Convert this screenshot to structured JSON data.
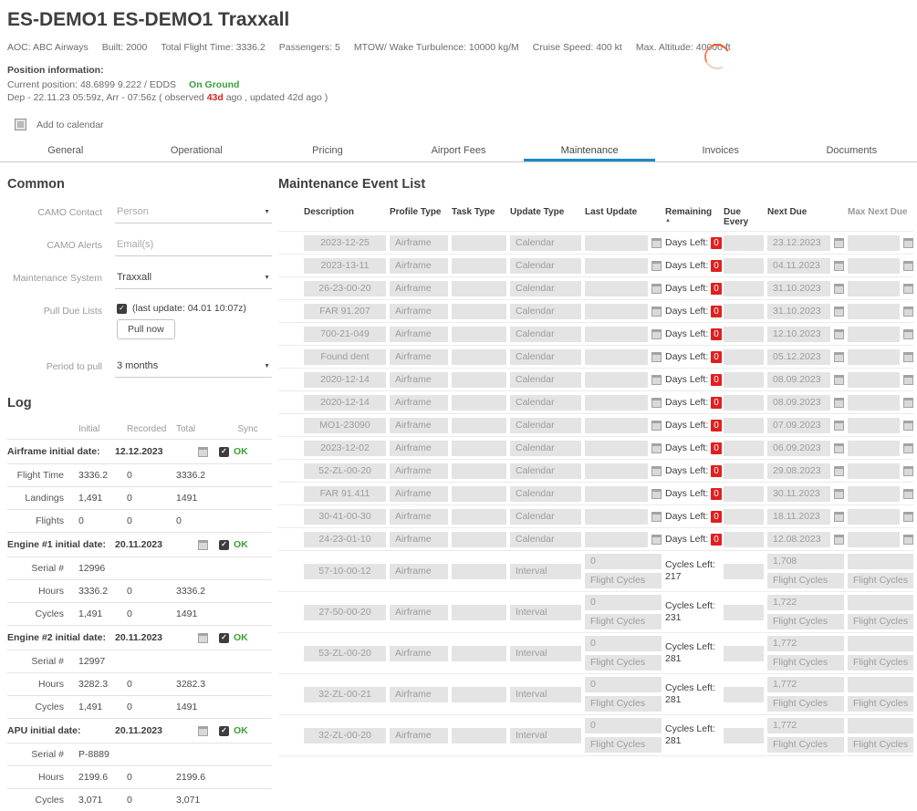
{
  "header": {
    "title": "ES-DEMO1 ES-DEMO1 Traxxall",
    "info_items": [
      "AOC: ABC Airways",
      "Built: 2000",
      "Total Flight Time: 3336.2",
      "Passengers: 5",
      "MTOW/ Wake Turbulence: 10000 kg/M",
      "Cruise Speed: 400 kt",
      "Max. Altitude: 40000 ft"
    ],
    "position": {
      "label": "Position information:",
      "current": "Current position: 48.6899 9.222 / EDDS",
      "status": "On Ground",
      "dep_prefix": "Dep - 22.11.23 05:59z, Arr - 07:56z ( observed ",
      "observed": "43d",
      "dep_suffix": " ago , updated 42d ago )"
    },
    "add_to_calendar": "Add to calendar"
  },
  "tabs": [
    {
      "label": "General",
      "active": false
    },
    {
      "label": "Operational",
      "active": false
    },
    {
      "label": "Pricing",
      "active": false
    },
    {
      "label": "Airport Fees",
      "active": false
    },
    {
      "label": "Maintenance",
      "active": true
    },
    {
      "label": "Invoices",
      "active": false
    },
    {
      "label": "Documents",
      "active": false
    }
  ],
  "common": {
    "title": "Common",
    "camo_contact": {
      "label": "CAMO Contact",
      "placeholder": "Person"
    },
    "camo_alerts": {
      "label": "CAMO Alerts",
      "placeholder": "Email(s)"
    },
    "maintenance_system": {
      "label": "Maintenance System",
      "value": "Traxxall"
    },
    "pull_due_lists": {
      "label": "Pull Due Lists",
      "note": "(last update: 04.01 10:07z)",
      "button": "Pull now"
    },
    "period_to_pull": {
      "label": "Period to pull",
      "value": "3 months"
    }
  },
  "log": {
    "title": "Log",
    "columns": [
      "Initial",
      "Recorded",
      "Total",
      "Sync"
    ],
    "sync_ok": "OK",
    "groups": [
      {
        "header": "Airframe initial date:",
        "date": "12.12.2023",
        "sync": "OK",
        "rows": [
          [
            "Flight Time",
            "3336.2",
            "0",
            "3336.2"
          ],
          [
            "Landings",
            "1,491",
            "0",
            "1491"
          ],
          [
            "Flights",
            "0",
            "0",
            "0"
          ]
        ]
      },
      {
        "header": "Engine #1 initial date:",
        "date": "20.11.2023",
        "sync": "OK",
        "rows": [
          [
            "Serial #",
            "12996",
            "",
            ""
          ],
          [
            "Hours",
            "3336.2",
            "0",
            "3336.2"
          ],
          [
            "Cycles",
            "1,491",
            "0",
            "1491"
          ]
        ]
      },
      {
        "header": "Engine #2 initial date:",
        "date": "20.11.2023",
        "sync": "OK",
        "rows": [
          [
            "Serial #",
            "12997",
            "",
            ""
          ],
          [
            "Hours",
            "3282.3",
            "0",
            "3282.3"
          ],
          [
            "Cycles",
            "1,491",
            "0",
            "1491"
          ]
        ]
      },
      {
        "header": "APU initial date:",
        "date": "20.11.2023",
        "sync": "OK",
        "rows": [
          [
            "Serial #",
            "P-8889",
            "",
            ""
          ],
          [
            "Hours",
            "2199.6",
            "0",
            "2199.6"
          ],
          [
            "Cycles",
            "3,071",
            "0",
            "3,071"
          ]
        ]
      }
    ]
  },
  "events": {
    "title": "Maintenance Event List",
    "columns": [
      "Description",
      "Profile Type",
      "Task Type",
      "Update Type",
      "Last Update",
      "Remaining",
      "Due Every",
      "Next Due",
      "Max Next Due"
    ],
    "sort_indicator": "asc",
    "calendar_rows": [
      {
        "description": "2023-12-25",
        "profile": "Airframe",
        "task": "",
        "update_type": "Calendar",
        "remaining_label": "Days Left:",
        "remaining_value": "0",
        "next_due": "23.12.2023"
      },
      {
        "description": "2023-13-11",
        "profile": "Airframe",
        "task": "",
        "update_type": "Calendar",
        "remaining_label": "Days Left:",
        "remaining_value": "0",
        "next_due": "04.11.2023"
      },
      {
        "description": "26-23-00-20",
        "profile": "Airframe",
        "task": "",
        "update_type": "Calendar",
        "remaining_label": "Days Left:",
        "remaining_value": "0",
        "next_due": "31.10.2023"
      },
      {
        "description": "FAR 91.207",
        "profile": "Airframe",
        "task": "",
        "update_type": "Calendar",
        "remaining_label": "Days Left:",
        "remaining_value": "0",
        "next_due": "31.10.2023"
      },
      {
        "description": "700-21-049",
        "profile": "Airframe",
        "task": "",
        "update_type": "Calendar",
        "remaining_label": "Days Left:",
        "remaining_value": "0",
        "next_due": "12.10.2023"
      },
      {
        "description": "Found dent",
        "profile": "Airframe",
        "task": "",
        "update_type": "Calendar",
        "remaining_label": "Days Left:",
        "remaining_value": "0",
        "next_due": "05.12.2023"
      },
      {
        "description": "2020-12-14",
        "profile": "Airframe",
        "task": "",
        "update_type": "Calendar",
        "remaining_label": "Days Left:",
        "remaining_value": "0",
        "next_due": "08.09.2023"
      },
      {
        "description": "2020-12-14",
        "profile": "Airframe",
        "task": "",
        "update_type": "Calendar",
        "remaining_label": "Days Left:",
        "remaining_value": "0",
        "next_due": "08.09.2023"
      },
      {
        "description": "MO1-23090",
        "profile": "Airframe",
        "task": "",
        "update_type": "Calendar",
        "remaining_label": "Days Left:",
        "remaining_value": "0",
        "next_due": "07.09.2023"
      },
      {
        "description": "2023-12-02",
        "profile": "Airframe",
        "task": "",
        "update_type": "Calendar",
        "remaining_label": "Days Left:",
        "remaining_value": "0",
        "next_due": "06.09.2023"
      },
      {
        "description": "52-ZL-00-20",
        "profile": "Airframe",
        "task": "",
        "update_type": "Calendar",
        "remaining_label": "Days Left:",
        "remaining_value": "0",
        "next_due": "29.08.2023"
      },
      {
        "description": "FAR 91.411",
        "profile": "Airframe",
        "task": "",
        "update_type": "Calendar",
        "remaining_label": "Days Left:",
        "remaining_value": "0",
        "next_due": "30.11.2023"
      },
      {
        "description": "30-41-00-30",
        "profile": "Airframe",
        "task": "",
        "update_type": "Calendar",
        "remaining_label": "Days Left:",
        "remaining_value": "0",
        "next_due": "18.11.2023"
      },
      {
        "description": "24-23-01-10",
        "profile": "Airframe",
        "task": "",
        "update_type": "Calendar",
        "remaining_label": "Days Left:",
        "remaining_value": "0",
        "next_due": "12.08.2023"
      }
    ],
    "interval_rows": [
      {
        "description": "57-10-00-12",
        "profile": "Airframe",
        "task": "",
        "update_type": "Interval",
        "last_update_value": "0",
        "last_update_unit": "Flight Cycles",
        "remaining_label": "Cycles Left:",
        "remaining_value": "217",
        "next_due": "1,708",
        "next_due_unit": "Flight Cycles",
        "max_next_due_unit": "Flight Cycles"
      },
      {
        "description": "27-50-00-20",
        "profile": "Airframe",
        "task": "",
        "update_type": "Interval",
        "last_update_value": "0",
        "last_update_unit": "Flight Cycles",
        "remaining_label": "Cycles Left:",
        "remaining_value": "231",
        "next_due": "1,722",
        "next_due_unit": "Flight Cycles",
        "max_next_due_unit": "Flight Cycles"
      },
      {
        "description": "53-ZL-00-20",
        "profile": "Airframe",
        "task": "",
        "update_type": "Interval",
        "last_update_value": "0",
        "last_update_unit": "Flight Cycles",
        "remaining_label": "Cycles Left:",
        "remaining_value": "281",
        "next_due": "1,772",
        "next_due_unit": "Flight Cycles",
        "max_next_due_unit": "Flight Cycles"
      },
      {
        "description": "32-ZL-00-21",
        "profile": "Airframe",
        "task": "",
        "update_type": "Interval",
        "last_update_value": "0",
        "last_update_unit": "Flight Cycles",
        "remaining_label": "Cycles Left:",
        "remaining_value": "281",
        "next_due": "1,772",
        "next_due_unit": "Flight Cycles",
        "max_next_due_unit": "Flight Cycles"
      },
      {
        "description": "32-ZL-00-20",
        "profile": "Airframe",
        "task": "",
        "update_type": "Interval",
        "last_update_value": "0",
        "last_update_unit": "Flight Cycles",
        "remaining_label": "Cycles Left:",
        "remaining_value": "281",
        "next_due": "1,772",
        "next_due_unit": "Flight Cycles",
        "max_next_due_unit": "Flight Cycles"
      }
    ]
  },
  "colors": {
    "accent_blue": "#1d87c8",
    "status_green": "#3ba03b",
    "alert_red": "#e01f1f",
    "input_bg": "#e4e4e4"
  }
}
